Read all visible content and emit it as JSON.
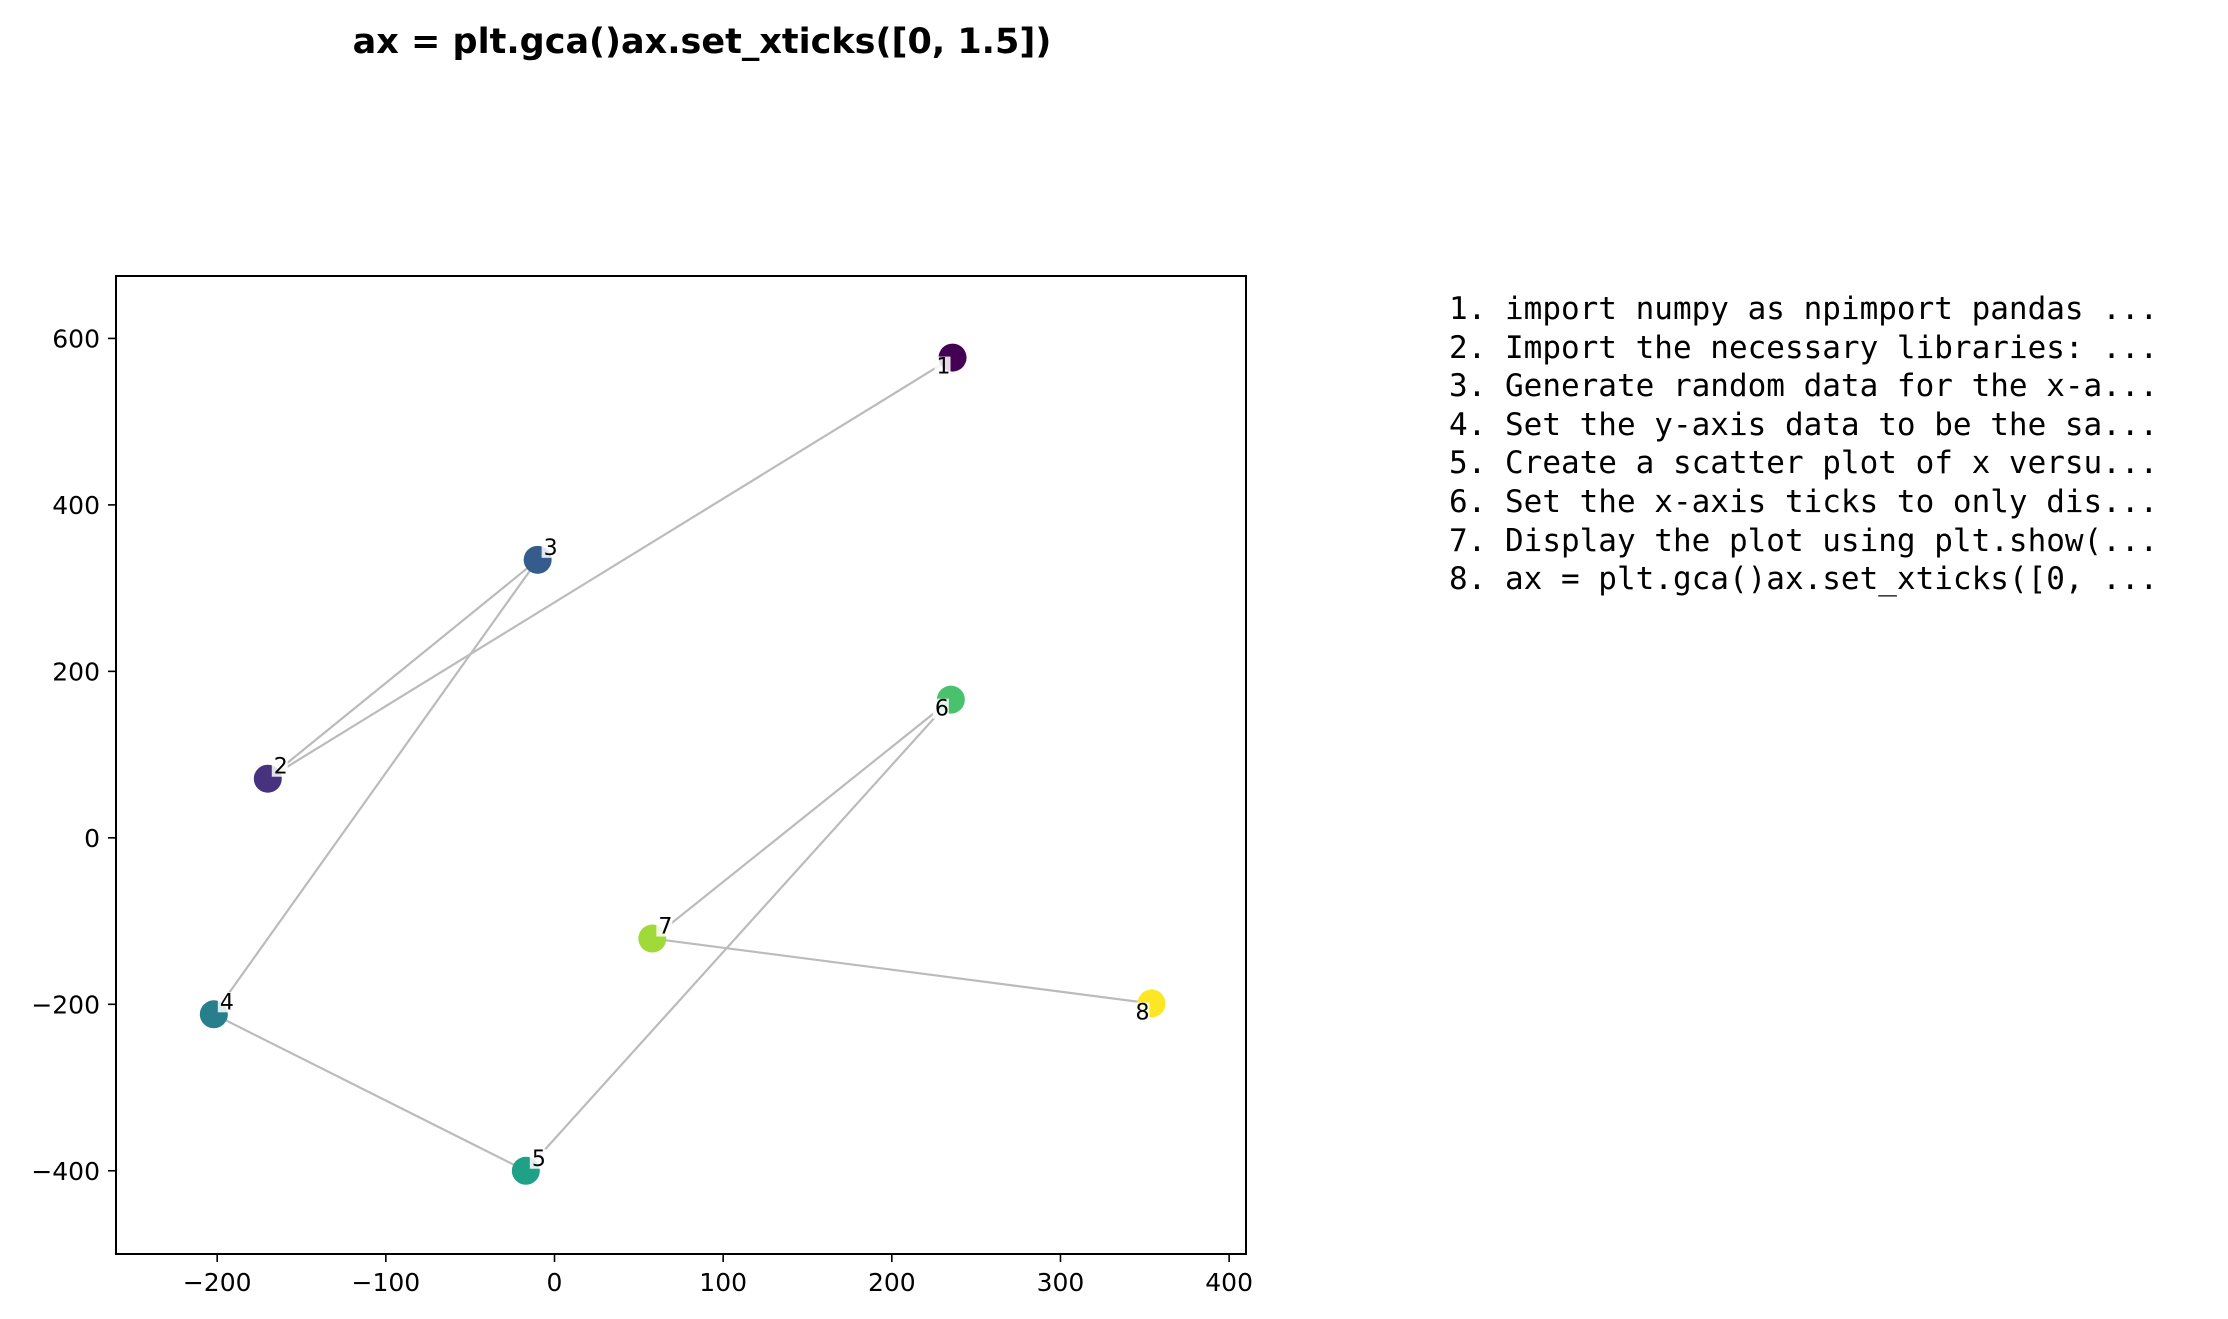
{
  "chart_data": {
    "type": "scatter",
    "title": "ax = plt.gca()ax.set_xticks([0, 1.5])",
    "xlabel": "",
    "ylabel": "",
    "xlim": [
      -260,
      410
    ],
    "ylim": [
      -500,
      675
    ],
    "xticks": [
      -200,
      -100,
      0,
      100,
      200,
      300,
      400
    ],
    "yticks": [
      600,
      400,
      200,
      0,
      -200,
      -400
    ],
    "xtick_labels": [
      "−200",
      "−100",
      "0",
      "100",
      "200",
      "300",
      "400"
    ],
    "ytick_labels": [
      "600",
      "400",
      "200",
      "0",
      "−200",
      "−400"
    ],
    "grid": false,
    "connect_points_in_order": true,
    "line_color": "#bbbbbb",
    "colormap": "viridis",
    "points": [
      {
        "label": "1",
        "x": 236,
        "y": 577,
        "color": "#440154"
      },
      {
        "label": "2",
        "x": -170,
        "y": 71,
        "color": "#46327e"
      },
      {
        "label": "3",
        "x": -10,
        "y": 334,
        "color": "#365c8d"
      },
      {
        "label": "4",
        "x": -202,
        "y": -212,
        "color": "#277f8e"
      },
      {
        "label": "5",
        "x": -17,
        "y": -400,
        "color": "#1fa187"
      },
      {
        "label": "6",
        "x": 235,
        "y": 166,
        "color": "#4ac16d"
      },
      {
        "label": "7",
        "x": 58,
        "y": -121,
        "color": "#a0da39"
      },
      {
        "label": "8",
        "x": 354,
        "y": -199,
        "color": "#fde725"
      }
    ],
    "annotations": [
      "1. import numpy as npimport pandas ...",
      "2. Import the necessary libraries: ...",
      "3. Generate random data for the x-a...",
      "4. Set the y-axis data to be the sa...",
      "5. Create a scatter plot of x versu...",
      "6. Set the x-axis ticks to only dis...",
      "7. Display the plot using plt.show(...",
      "8. ax = plt.gca()ax.set_xticks([0, ..."
    ]
  }
}
